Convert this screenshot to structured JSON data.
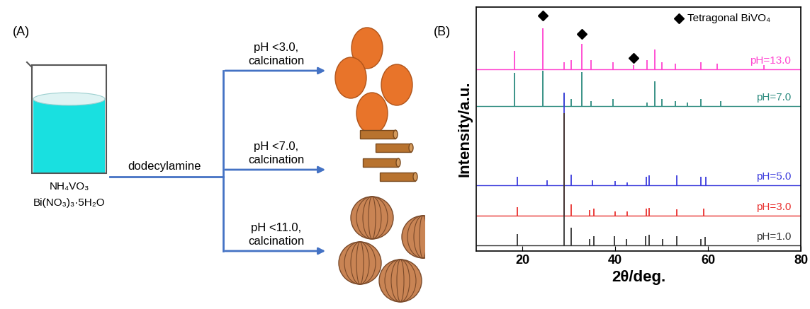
{
  "diagram": {
    "label": "(A)",
    "reagents": [
      "NH₄VO₃",
      "Bi(NO₃)₃·5H₂O"
    ],
    "additive": "dodecylamine",
    "branches": [
      "pH <3.0,\ncalcination",
      "pH <7.0,\ncalcination",
      "pH <11.0,\ncalcination"
    ]
  },
  "chart_data": {
    "type": "line",
    "title": "(B)",
    "x_label": "2θ/deg.",
    "y_label": "Intensity/a.u.",
    "xlim": [
      10,
      80
    ],
    "xticks": [
      20,
      40,
      60,
      80
    ],
    "ylim": [
      0,
      100
    ],
    "tick_labels": "x",
    "annotations": [
      {
        "text": "Tetragonal BiVO₄",
        "marker": "diamond",
        "x": [
          24.4,
          32.7,
          43.9
        ],
        "y": [
          96.5,
          89,
          79
        ]
      }
    ],
    "series": [
      {
        "name": "pH=13.0",
        "color": "#ff44d0",
        "baseline": 74.5,
        "x": [
          18.3,
          24.4,
          28.9,
          30.5,
          32.7,
          34.8,
          39.5,
          43.9,
          46.8,
          48.5,
          50,
          53,
          58.5,
          62,
          72
        ],
        "values": [
          82,
          91.3,
          77.4,
          78.3,
          85,
          78.3,
          77.4,
          76.2,
          78.3,
          82.6,
          77.4,
          76.8,
          77.4,
          76.8,
          76.2
        ]
      },
      {
        "name": "pH=7.0",
        "color": "#2b8a7e",
        "baseline": 59.4,
        "x": [
          18.3,
          24.4,
          28.9,
          30.5,
          32.7,
          34.8,
          39.5,
          46.8,
          48.5,
          50,
          53,
          55.5,
          58.5,
          62.8
        ],
        "values": [
          73,
          74,
          64.6,
          62.3,
          73.3,
          61.4,
          62.3,
          60.9,
          69.6,
          62.3,
          61.4,
          60.9,
          62.3,
          61.4
        ]
      },
      {
        "name": "pH=5.0",
        "color": "#3b3bdc",
        "baseline": 27,
        "x": [
          18.9,
          25.3,
          28.9,
          30.5,
          35,
          40,
          42.5,
          46.7,
          47.3,
          53.3,
          58.5,
          59.5
        ],
        "values": [
          30.4,
          29,
          65,
          31.3,
          29,
          28.7,
          28.1,
          30.4,
          31,
          31,
          30.4,
          30.4
        ]
      },
      {
        "name": "pH=3.0",
        "color": "#e8312f",
        "baseline": 14.5,
        "x": [
          18.9,
          28.9,
          30.5,
          34.5,
          35.3,
          40,
          42.5,
          46.7,
          47.3,
          53.3,
          59
        ],
        "values": [
          18,
          56.5,
          19,
          16.8,
          17.4,
          16.2,
          16.2,
          17.4,
          17.7,
          17.1,
          17.4
        ]
      },
      {
        "name": "pH=1.0",
        "color": "#333333",
        "baseline": 2.3,
        "x": [
          18.9,
          28.9,
          30.5,
          34.5,
          35.4,
          39.8,
          42.4,
          46.6,
          47.3,
          50.2,
          53.3,
          58.5,
          59.4
        ],
        "values": [
          7,
          56.5,
          9.5,
          5,
          6,
          6,
          5,
          6,
          6.7,
          5,
          6,
          5,
          5.8
        ]
      }
    ]
  }
}
